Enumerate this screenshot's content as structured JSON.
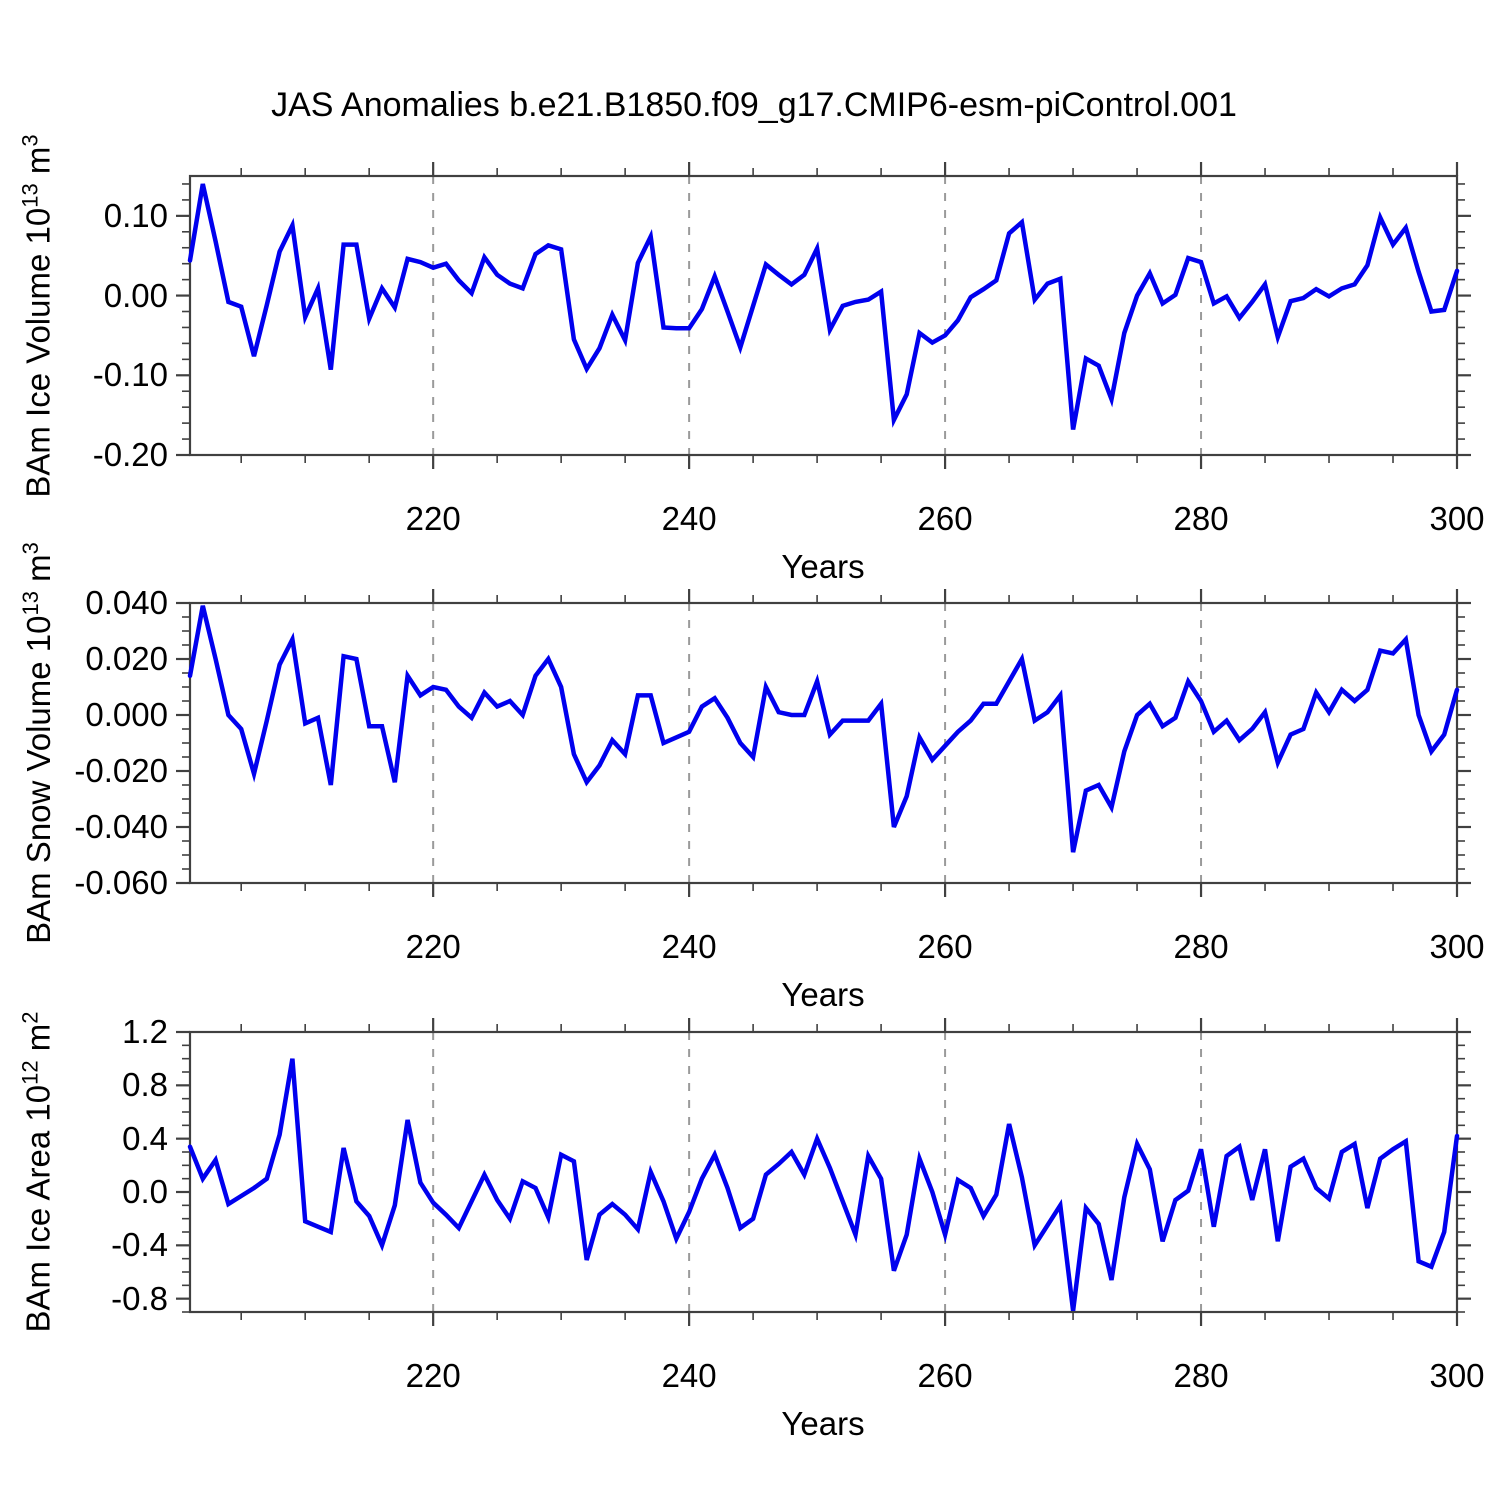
{
  "title": "JAS Anomalies b.e21.B1850.f09_g17.CMIP6-esm-piControl.001",
  "colors": {
    "line": "#0000EE",
    "axis": "#404040",
    "grid": "#9a9a9a",
    "background": "#ffffff",
    "text": "#000000"
  },
  "chart_data": [
    {
      "type": "line",
      "xlabel": "Years",
      "ylabel_main": "BAm Ice Volume 10",
      "ylabel_exp": "13",
      "ylabel_unit": " m",
      "ylabel_unit_exp": "3",
      "x_start": 201,
      "x_end": 300,
      "xlim": [
        201,
        300
      ],
      "ylim": [
        -0.2,
        0.15
      ],
      "xticks": {
        "values": [
          220,
          240,
          260,
          280,
          300
        ],
        "labels": [
          "220",
          "240",
          "260",
          "280",
          "300"
        ]
      },
      "x_minor_step": 5,
      "gridlines_x": [
        220,
        240,
        260,
        280
      ],
      "yticks": {
        "values": [
          0.1,
          0.0,
          -0.1,
          -0.2
        ],
        "labels": [
          "0.10",
          "0.00",
          "-0.10",
          "-0.20"
        ]
      },
      "y_minor_step": 0.02,
      "legend": "none",
      "grid": "vertical-dashed",
      "values": [
        0.044,
        0.14,
        0.068,
        -0.008,
        -0.014,
        -0.076,
        -0.012,
        0.055,
        0.088,
        -0.027,
        0.009,
        -0.093,
        0.064,
        0.064,
        -0.029,
        0.009,
        -0.015,
        0.046,
        0.042,
        0.035,
        0.04,
        0.019,
        0.003,
        0.048,
        0.026,
        0.015,
        0.009,
        0.052,
        0.063,
        0.058,
        -0.055,
        -0.092,
        -0.066,
        -0.024,
        -0.056,
        0.041,
        0.074,
        -0.04,
        -0.041,
        -0.041,
        -0.017,
        0.024,
        -0.02,
        -0.065,
        -0.013,
        0.039,
        0.026,
        0.014,
        0.026,
        0.059,
        -0.043,
        -0.013,
        -0.008,
        -0.005,
        0.005,
        -0.156,
        -0.124,
        -0.047,
        -0.059,
        -0.05,
        -0.031,
        -0.002,
        0.008,
        0.019,
        0.078,
        0.092,
        -0.005,
        0.015,
        0.021,
        -0.168,
        -0.079,
        -0.088,
        -0.13,
        -0.047,
        0.0,
        0.028,
        -0.01,
        0.001,
        0.047,
        0.042,
        -0.01,
        -0.001,
        -0.028,
        -0.008,
        0.014,
        -0.052,
        -0.007,
        -0.003,
        0.008,
        -0.001,
        0.009,
        0.014,
        0.038,
        0.098,
        0.064,
        0.085,
        0.03,
        -0.02,
        -0.018,
        0.031
      ]
    },
    {
      "type": "line",
      "xlabel": "Years",
      "ylabel_main": "BAm Snow Volume 10",
      "ylabel_exp": "13",
      "ylabel_unit": " m",
      "ylabel_unit_exp": "3",
      "x_start": 201,
      "x_end": 300,
      "xlim": [
        201,
        300
      ],
      "ylim": [
        -0.06,
        0.04
      ],
      "xticks": {
        "values": [
          220,
          240,
          260,
          280,
          300
        ],
        "labels": [
          "220",
          "240",
          "260",
          "280",
          "300"
        ]
      },
      "x_minor_step": 5,
      "gridlines_x": [
        220,
        240,
        260,
        280
      ],
      "yticks": {
        "values": [
          0.04,
          0.02,
          0.0,
          -0.02,
          -0.04,
          -0.06
        ],
        "labels": [
          "0.040",
          "0.020",
          "0.000",
          "-0.020",
          "-0.040",
          "-0.060"
        ]
      },
      "y_minor_step": 0.005,
      "legend": "none",
      "grid": "vertical-dashed",
      "values": [
        0.014,
        0.039,
        0.02,
        0.0,
        -0.005,
        -0.021,
        -0.002,
        0.018,
        0.027,
        -0.003,
        -0.001,
        -0.025,
        0.021,
        0.02,
        -0.004,
        -0.004,
        -0.024,
        0.014,
        0.007,
        0.01,
        0.009,
        0.003,
        -0.001,
        0.008,
        0.003,
        0.005,
        0.0,
        0.014,
        0.02,
        0.01,
        -0.014,
        -0.024,
        -0.018,
        -0.009,
        -0.014,
        0.007,
        0.007,
        -0.01,
        -0.008,
        -0.006,
        0.003,
        0.006,
        -0.001,
        -0.01,
        -0.015,
        0.01,
        0.001,
        0.0,
        0.0,
        0.012,
        -0.007,
        -0.002,
        -0.002,
        -0.002,
        0.004,
        -0.04,
        -0.029,
        -0.008,
        -0.016,
        -0.011,
        -0.006,
        -0.002,
        0.004,
        0.004,
        0.012,
        0.02,
        -0.002,
        0.001,
        0.007,
        -0.049,
        -0.027,
        -0.025,
        -0.033,
        -0.013,
        0.0,
        0.004,
        -0.004,
        -0.001,
        0.012,
        0.005,
        -0.006,
        -0.002,
        -0.009,
        -0.005,
        0.001,
        -0.017,
        -0.007,
        -0.005,
        0.008,
        0.001,
        0.009,
        0.005,
        0.009,
        0.023,
        0.022,
        0.027,
        0.0,
        -0.013,
        -0.007,
        0.009
      ]
    },
    {
      "type": "line",
      "xlabel": "Years",
      "ylabel_main": "BAm Ice Area 10",
      "ylabel_exp": "12",
      "ylabel_unit": " m",
      "ylabel_unit_exp": "2",
      "x_start": 201,
      "x_end": 300,
      "xlim": [
        201,
        300
      ],
      "ylim": [
        -0.9,
        1.2
      ],
      "xticks": {
        "values": [
          220,
          240,
          260,
          280,
          300
        ],
        "labels": [
          "220",
          "240",
          "260",
          "280",
          "300"
        ]
      },
      "x_minor_step": 5,
      "gridlines_x": [
        220,
        240,
        260,
        280
      ],
      "yticks": {
        "values": [
          1.2,
          0.8,
          0.4,
          0.0,
          -0.4,
          -0.8
        ],
        "labels": [
          "1.2",
          "0.8",
          "0.4",
          "0.0",
          "-0.4",
          "-0.8"
        ]
      },
      "y_minor_step": 0.1,
      "legend": "none",
      "grid": "vertical-dashed",
      "values": [
        0.34,
        0.1,
        0.24,
        -0.09,
        -0.03,
        0.03,
        0.1,
        0.43,
        1.0,
        -0.22,
        -0.26,
        -0.3,
        0.33,
        -0.07,
        -0.18,
        -0.4,
        -0.1,
        0.54,
        0.07,
        -0.08,
        -0.17,
        -0.27,
        -0.07,
        0.13,
        -0.06,
        -0.2,
        0.08,
        0.03,
        -0.19,
        0.28,
        0.23,
        -0.51,
        -0.17,
        -0.09,
        -0.17,
        -0.28,
        0.15,
        -0.07,
        -0.35,
        -0.15,
        0.1,
        0.28,
        0.03,
        -0.27,
        -0.2,
        0.13,
        0.21,
        0.3,
        0.13,
        0.4,
        0.18,
        -0.07,
        -0.32,
        0.27,
        0.1,
        -0.59,
        -0.32,
        0.25,
        0.0,
        -0.32,
        0.09,
        0.03,
        -0.18,
        -0.02,
        0.51,
        0.11,
        -0.4,
        -0.25,
        -0.1,
        -0.89,
        -0.12,
        -0.24,
        -0.66,
        -0.04,
        0.36,
        0.17,
        -0.37,
        -0.06,
        0.01,
        0.32,
        -0.26,
        0.27,
        0.34,
        -0.06,
        0.32,
        -0.37,
        0.19,
        0.25,
        0.03,
        -0.05,
        0.3,
        0.36,
        -0.12,
        0.25,
        0.32,
        0.38,
        -0.52,
        -0.56,
        -0.3,
        0.42
      ]
    }
  ]
}
